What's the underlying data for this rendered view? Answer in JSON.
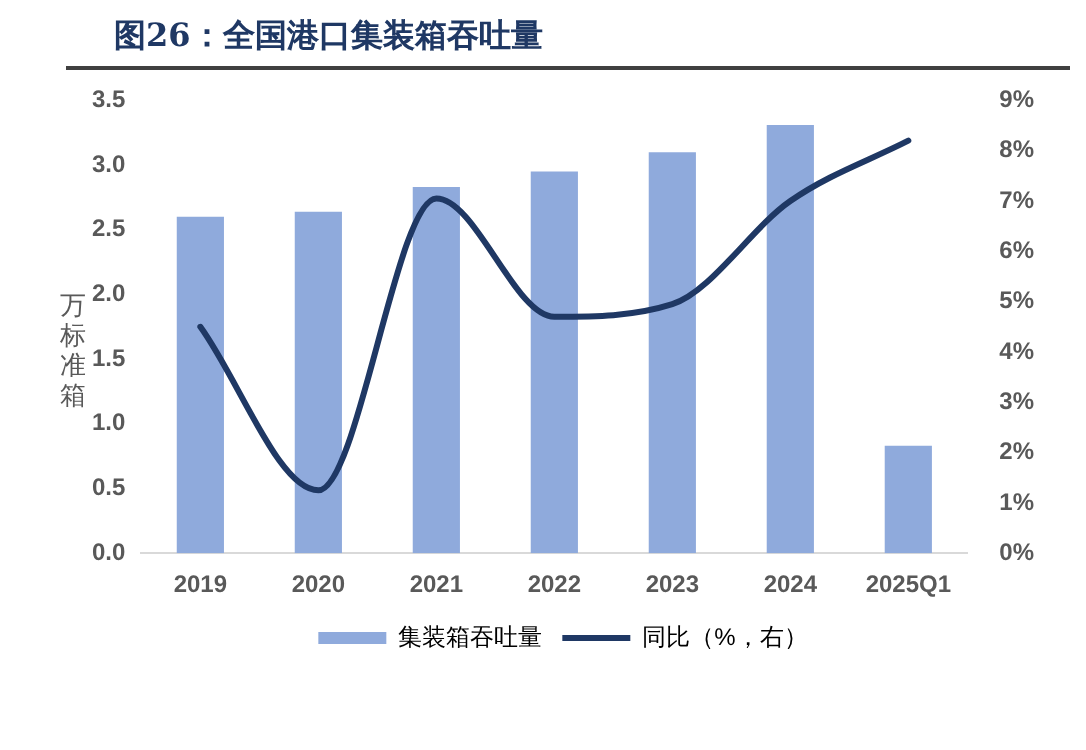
{
  "chart_data": {
    "type": "bar",
    "title": "图26：全国港口集装箱吞吐量",
    "ylabel": "万标准箱",
    "categories": [
      "2019",
      "2020",
      "2021",
      "2022",
      "2023",
      "2024",
      "2025Q1"
    ],
    "series": [
      {
        "name": "集装箱吞吐量",
        "color": "#8faadc",
        "values": [
          2.6,
          2.64,
          2.83,
          2.95,
          3.1,
          3.31,
          0.83
        ]
      },
      {
        "name": "同比（%，右）",
        "type": "line",
        "axis": "y2",
        "color": "#1f3864",
        "values": [
          4.5,
          1.25,
          7.05,
          4.7,
          4.95,
          7.0,
          8.2
        ]
      }
    ],
    "ylim": [
      0,
      3.5
    ],
    "yticks": [
      {
        "value": 0,
        "label": "0.0"
      },
      {
        "value": 0.5,
        "label": "0.5"
      },
      {
        "value": 1,
        "label": "1.0"
      },
      {
        "value": 1.5,
        "label": "1.5"
      },
      {
        "value": 2,
        "label": "2.0"
      },
      {
        "value": 2.5,
        "label": "2.5"
      },
      {
        "value": 3,
        "label": "3.0"
      },
      {
        "value": 3.5,
        "label": "3.5"
      }
    ],
    "y2lim": [
      0,
      9
    ],
    "y2ticks": [
      {
        "value": 0,
        "label": "0%"
      },
      {
        "value": 1,
        "label": "1%"
      },
      {
        "value": 2,
        "label": "2%"
      },
      {
        "value": 3,
        "label": "3%"
      },
      {
        "value": 4,
        "label": "4%"
      },
      {
        "value": 5,
        "label": "5%"
      },
      {
        "value": 6,
        "label": "6%"
      },
      {
        "value": 7,
        "label": "7%"
      },
      {
        "value": 8,
        "label": "8%"
      },
      {
        "value": 9,
        "label": "9%"
      }
    ],
    "grid": false,
    "legend": "bottom",
    "marker": "none",
    "line_style": "solid"
  }
}
